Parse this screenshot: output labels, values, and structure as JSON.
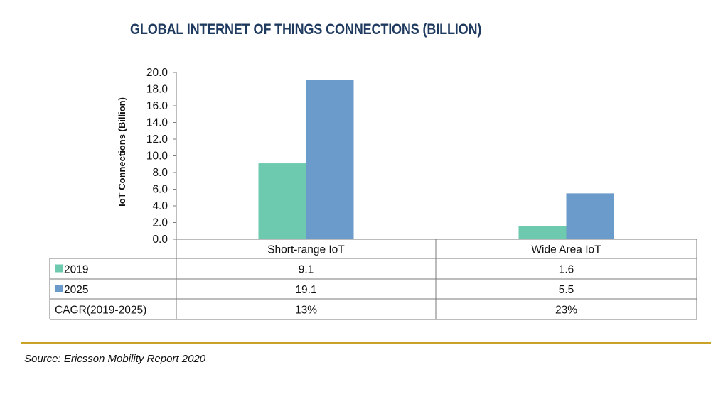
{
  "title": "GLOBAL INTERNET OF THINGS CONNECTIONS (BILLION)",
  "source": "Source: Ericsson Mobility Report 2020",
  "colors": {
    "s2019": "#6dcaae",
    "s2025": "#6a9bcb",
    "rule": "#c9a227",
    "title": "#1f3a5f"
  },
  "chart_data": {
    "type": "bar",
    "title": "GLOBAL INTERNET OF THINGS CONNECTIONS (BILLION)",
    "ylabel": "IoT Connections (Billion)",
    "xlabel": "",
    "ylim": [
      0,
      20
    ],
    "yticks": [
      "0.0",
      "2.0",
      "4.0",
      "6.0",
      "8.0",
      "10.0",
      "12.0",
      "14.0",
      "16.0",
      "18.0",
      "20.0"
    ],
    "categories": [
      "Short-range IoT",
      "Wide Area IoT"
    ],
    "series": [
      {
        "name": "2019",
        "values": [
          9.1,
          1.6
        ],
        "labels": [
          "9.1",
          "1.6"
        ],
        "color": "#6dcaae"
      },
      {
        "name": "2025",
        "values": [
          19.1,
          5.5
        ],
        "labels": [
          "19.1",
          "5.5"
        ],
        "color": "#6a9bcb"
      }
    ],
    "extra_rows": [
      {
        "name": "CAGR(2019-2025)",
        "values": [
          "13%",
          "23%"
        ]
      }
    ],
    "legend": "table-left",
    "grid": false
  }
}
